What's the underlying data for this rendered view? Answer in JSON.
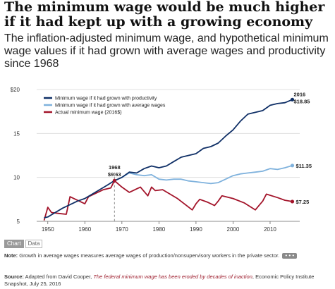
{
  "header": {
    "title": "The minimum wage would be much higher if it had kept up with a growing economy",
    "subtitle": "The inflation-adjusted minimum wage, and hypothetical minimum wage values if it had grown with average wages and productivity since 1968"
  },
  "tabs": [
    {
      "label": "Chart",
      "active": true
    },
    {
      "label": "Data",
      "active": false
    }
  ],
  "note": {
    "label": "Note:",
    "text": "Growth in average wages measures average wages of production/nonsupervisory workers in the private sector.",
    "more": "• • •"
  },
  "source": {
    "label": "Source:",
    "text_before": "Adapted from David Cooper,",
    "link_text": "The federal minimum wage has been eroded by decades of inaction",
    "text_after": ", Economic Policy Institute Snapshot, July 25, 2016"
  },
  "chart_data": {
    "type": "line",
    "xlim": [
      1947,
      2018
    ],
    "ylim": [
      5,
      20
    ],
    "x_ticks": [
      1950,
      1960,
      1970,
      1980,
      1990,
      2000,
      2010
    ],
    "y_ticks": [
      5,
      10,
      15,
      20
    ],
    "y_tick_labels": [
      "5",
      "10",
      "15",
      "$20"
    ],
    "grid": "horizontal",
    "legend_position": "top-left",
    "colors": {
      "productivity": "#0f2f66",
      "average_wages": "#7fb2dd",
      "actual": "#a3142a"
    },
    "series": [
      {
        "name": "Minimum wage if it had grown with productivity",
        "key": "productivity",
        "x": [
          1949,
          1950,
          1952,
          1954,
          1956,
          1958,
          1960,
          1962,
          1964,
          1966,
          1968,
          1970,
          1972,
          1974,
          1976,
          1978,
          1980,
          1982,
          1984,
          1986,
          1988,
          1990,
          1992,
          1994,
          1996,
          1998,
          2000,
          2002,
          2004,
          2006,
          2008,
          2010,
          2012,
          2014,
          2016
        ],
        "y": [
          5.4,
          5.5,
          6.0,
          6.5,
          6.9,
          7.3,
          7.6,
          8.1,
          8.6,
          9.1,
          9.63,
          10.0,
          10.6,
          10.5,
          11.0,
          11.3,
          11.1,
          11.3,
          11.8,
          12.3,
          12.5,
          12.7,
          13.3,
          13.5,
          13.9,
          14.7,
          15.4,
          16.4,
          17.2,
          17.4,
          17.6,
          18.2,
          18.4,
          18.5,
          18.85
        ]
      },
      {
        "name": "Minimum wage if it had grown with average wages",
        "key": "average_wages",
        "x": [
          1968,
          1970,
          1972,
          1974,
          1976,
          1978,
          1980,
          1982,
          1984,
          1986,
          1988,
          1990,
          1992,
          1994,
          1996,
          1998,
          2000,
          2002,
          2004,
          2006,
          2008,
          2010,
          2012,
          2014,
          2016
        ],
        "y": [
          9.63,
          10.0,
          10.5,
          10.3,
          10.2,
          10.3,
          9.8,
          9.7,
          9.8,
          9.8,
          9.6,
          9.5,
          9.4,
          9.3,
          9.4,
          9.8,
          10.2,
          10.4,
          10.5,
          10.6,
          10.7,
          11.0,
          10.9,
          11.1,
          11.35
        ]
      },
      {
        "name": "Actual minimum wage (2016$)",
        "key": "actual",
        "x": [
          1949,
          1950,
          1951,
          1953,
          1955,
          1956,
          1957,
          1960,
          1961,
          1963,
          1965,
          1967,
          1968,
          1970,
          1972,
          1974,
          1975,
          1977,
          1978,
          1979,
          1981,
          1985,
          1989,
          1990,
          1991,
          1993,
          1995,
          1996,
          1997,
          2000,
          2003,
          2006,
          2007,
          2008,
          2009,
          2012,
          2014,
          2016
        ],
        "y": [
          5.1,
          6.6,
          6.0,
          5.9,
          5.8,
          7.8,
          7.6,
          7.0,
          7.8,
          8.2,
          8.6,
          8.8,
          9.63,
          8.9,
          8.3,
          8.7,
          8.9,
          7.9,
          8.9,
          8.5,
          8.6,
          7.6,
          6.3,
          7.0,
          7.5,
          7.2,
          6.8,
          7.3,
          7.9,
          7.6,
          7.1,
          6.3,
          6.8,
          7.3,
          8.1,
          7.7,
          7.4,
          7.25
        ]
      }
    ],
    "annotations": [
      {
        "year_label": "1968",
        "value_label": "$9.63"
      },
      {
        "year_label": "2016",
        "value_label": "$18.85"
      },
      {
        "value_label": "$11.35"
      },
      {
        "value_label": "$7.25"
      }
    ]
  }
}
